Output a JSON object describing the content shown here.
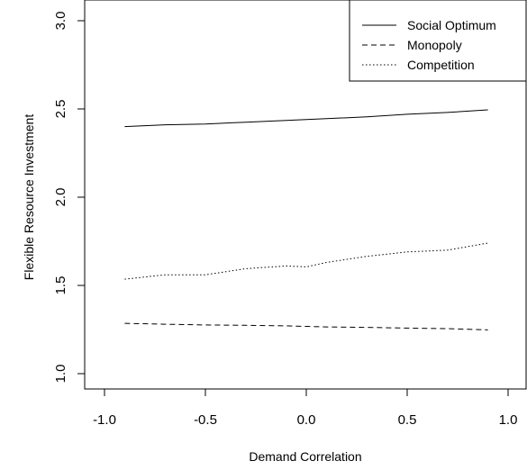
{
  "chart_data": {
    "type": "line",
    "title": "",
    "xlabel": "Demand Correlation",
    "ylabel": "Flexible Resource Investment",
    "xlim": [
      -1.0,
      1.0
    ],
    "ylim": [
      1.0,
      3.0
    ],
    "xticks": [
      "-1.0",
      "-0.5",
      "0.0",
      "0.5",
      "1.0"
    ],
    "yticks": [
      "1.0",
      "1.5",
      "2.0",
      "2.5",
      "3.0"
    ],
    "grid": false,
    "legend_position": "top-right",
    "x": [
      -0.9,
      -0.7,
      -0.5,
      -0.3,
      -0.1,
      0.0,
      0.1,
      0.3,
      0.5,
      0.7,
      0.9
    ],
    "series": [
      {
        "name": "Social Optimum",
        "line_style": "solid",
        "color": "#000000",
        "values": [
          2.4,
          2.41,
          2.415,
          2.425,
          2.435,
          2.44,
          2.445,
          2.455,
          2.47,
          2.48,
          2.495
        ]
      },
      {
        "name": "Monopoly",
        "line_style": "dashed",
        "color": "#000000",
        "values": [
          1.285,
          1.28,
          1.276,
          1.274,
          1.271,
          1.268,
          1.265,
          1.262,
          1.258,
          1.255,
          1.248
        ]
      },
      {
        "name": "Competition",
        "line_style": "dotted",
        "color": "#000000",
        "values": [
          1.535,
          1.56,
          1.56,
          1.595,
          1.61,
          1.605,
          1.63,
          1.665,
          1.69,
          1.7,
          1.74
        ]
      }
    ]
  }
}
